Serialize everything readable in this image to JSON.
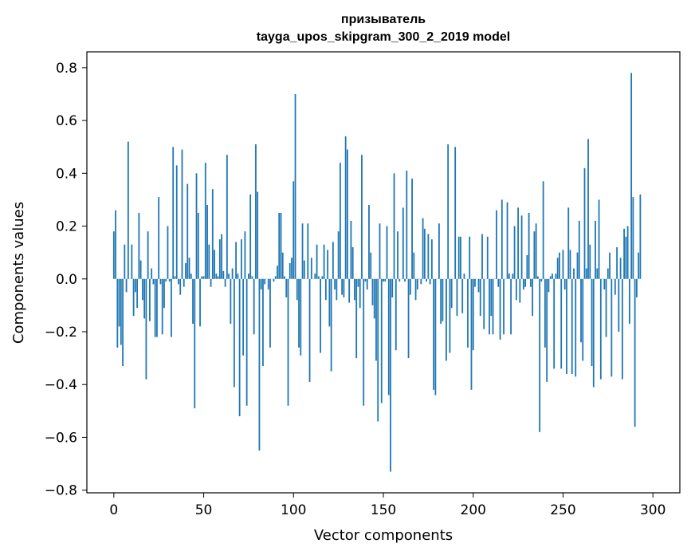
{
  "chart_data": {
    "type": "bar",
    "title_line1": "призыватель",
    "title_line2": "tayga_upos_skipgram_300_2_2019 model",
    "xlabel": "Vector components",
    "ylabel": "Components values",
    "xlim": [
      -15,
      315
    ],
    "ylim": [
      -0.81,
      0.86
    ],
    "xticks": [
      0,
      50,
      100,
      150,
      200,
      250,
      300
    ],
    "xtick_labels": [
      "0",
      "50",
      "100",
      "150",
      "200",
      "250",
      "300"
    ],
    "yticks": [
      -0.8,
      -0.6,
      -0.4,
      -0.2,
      0.0,
      0.2,
      0.4,
      0.6,
      0.8
    ],
    "ytick_labels": [
      "−0.8",
      "−0.6",
      "−0.4",
      "−0.2",
      "0.0",
      "0.2",
      "0.4",
      "0.6",
      "0.8"
    ],
    "bar_color": "#1f77b4",
    "grid": false,
    "values": [
      0.18,
      0.26,
      -0.26,
      -0.18,
      -0.25,
      -0.33,
      0.13,
      -0.05,
      0.52,
      0.0,
      0.13,
      -0.14,
      -0.05,
      -0.11,
      0.25,
      0.07,
      -0.08,
      -0.15,
      -0.38,
      0.18,
      -0.16,
      0.04,
      -0.02,
      -0.22,
      -0.22,
      0.31,
      -0.02,
      -0.21,
      -0.11,
      -0.01,
      0.2,
      -0.01,
      -0.22,
      0.5,
      0.01,
      0.43,
      -0.02,
      -0.06,
      0.49,
      -0.03,
      0.06,
      0.36,
      0.08,
      0.02,
      -0.17,
      -0.49,
      0.4,
      0.25,
      -0.18,
      0.01,
      0.01,
      0.44,
      0.28,
      0.13,
      -0.03,
      0.34,
      0.11,
      0.02,
      0.01,
      0.15,
      0.17,
      0.03,
      -0.03,
      0.47,
      0.02,
      -0.17,
      0.04,
      -0.41,
      0.14,
      0.02,
      -0.52,
      0.15,
      -0.29,
      0.18,
      -0.48,
      0.02,
      0.32,
      0.01,
      -0.21,
      0.51,
      0.33,
      -0.65,
      -0.04,
      -0.33,
      -0.02,
      0.0,
      -0.04,
      -0.26,
      0.0,
      -0.01,
      0.01,
      0.05,
      0.25,
      0.25,
      0.1,
      0.01,
      -0.07,
      -0.48,
      0.06,
      0.08,
      0.37,
      0.7,
      -0.08,
      -0.26,
      -0.29,
      0.21,
      0.07,
      0.0,
      0.21,
      -0.39,
      0.08,
      0.0,
      0.02,
      0.13,
      0.01,
      -0.28,
      0.01,
      0.13,
      -0.08,
      0.11,
      -0.18,
      -0.35,
      0.14,
      -0.04,
      -0.08,
      0.18,
      0.44,
      -0.06,
      -0.07,
      0.54,
      0.49,
      -0.09,
      0.22,
      0.12,
      -0.08,
      -0.3,
      -0.03,
      -0.11,
      0.47,
      -0.48,
      -0.01,
      -0.04,
      0.28,
      0.1,
      -0.1,
      -0.15,
      -0.31,
      -0.54,
      0.21,
      -0.47,
      -0.01,
      -0.01,
      0.2,
      -0.44,
      -0.73,
      -0.07,
      0.4,
      -0.27,
      0.18,
      -0.01,
      0.0,
      0.27,
      -0.01,
      0.41,
      -0.3,
      -0.06,
      0.38,
      0.1,
      -0.08,
      -0.04,
      0.0,
      -0.02,
      0.23,
      0.19,
      -0.01,
      0.17,
      -0.02,
      0.15,
      -0.42,
      -0.44,
      0.0,
      0.21,
      -0.17,
      -0.16,
      0.0,
      -0.31,
      0.51,
      -0.28,
      -0.11,
      0.0,
      0.5,
      -0.14,
      0.16,
      0.16,
      -0.13,
      0.02,
      0.0,
      -0.26,
      0.16,
      -0.42,
      -0.27,
      -0.03,
      0.0,
      -0.05,
      -0.14,
      0.17,
      -0.19,
      0.0,
      0.16,
      -0.21,
      -0.14,
      -0.21,
      0.0,
      0.26,
      -0.03,
      -0.23,
      0.3,
      -0.21,
      0.0,
      0.29,
      0.02,
      -0.21,
      0.02,
      0.2,
      -0.08,
      0.27,
      -0.09,
      0.24,
      -0.04,
      -0.03,
      0.09,
      0.25,
      -0.03,
      -0.14,
      0.18,
      0.21,
      0.01,
      -0.58,
      -0.01,
      0.37,
      -0.26,
      -0.39,
      -0.05,
      0.01,
      0.02,
      -0.34,
      0.02,
      0.08,
      0.1,
      -0.34,
      0.11,
      -0.04,
      -0.36,
      0.27,
      0.11,
      -0.36,
      0.04,
      -0.37,
      0.1,
      0.22,
      -0.24,
      -0.31,
      0.42,
      0.04,
      0.53,
      0.13,
      -0.33,
      -0.41,
      0.22,
      0.04,
      0.3,
      -0.38,
      0.0,
      -0.04,
      -0.22,
      0.04,
      0.1,
      -0.37,
      0.0,
      -0.06,
      0.12,
      -0.2,
      0.08,
      -0.38,
      0.19,
      0.16,
      0.2,
      -0.17,
      0.78,
      0.31,
      -0.56,
      -0.07,
      0.1,
      0.32
    ]
  }
}
